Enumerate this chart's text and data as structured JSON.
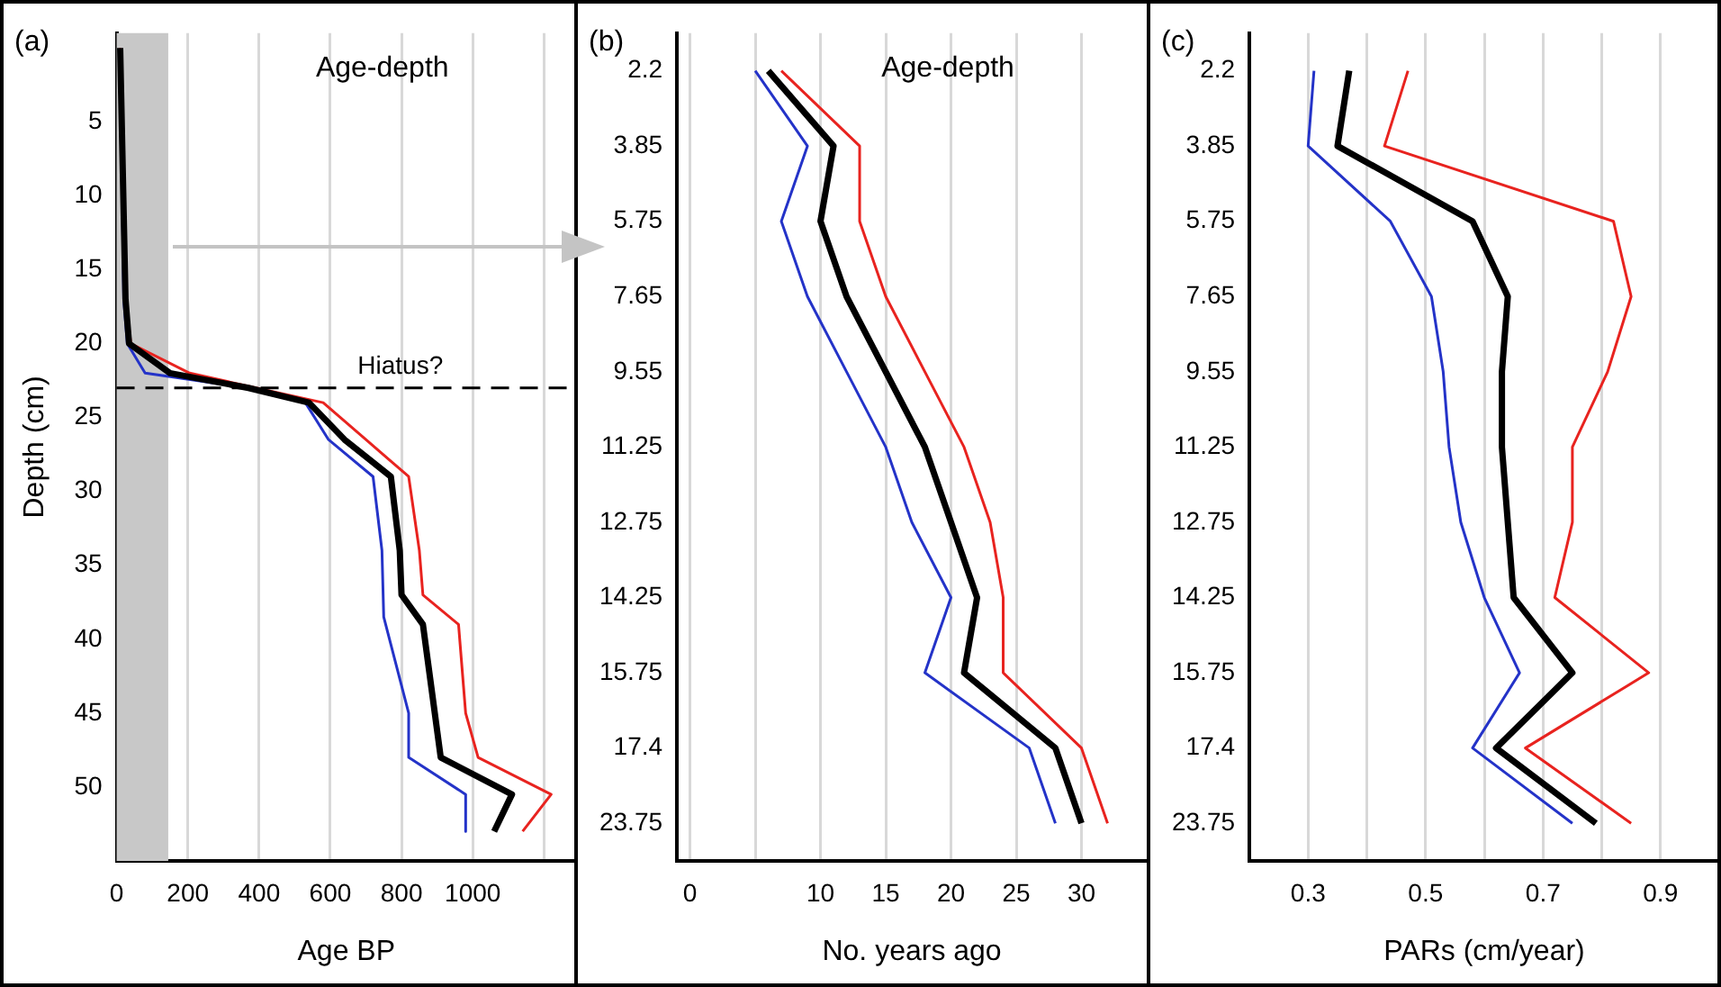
{
  "chart_data": [
    {
      "type": "line",
      "title": "Age-depth",
      "xlabel": "Age BP",
      "ylabel": "Depth (cm)",
      "annotations": [
        "(a)"
      ],
      "xlim": [
        0,
        1290
      ],
      "xticks": [
        0,
        200,
        400,
        600,
        800,
        1000,
        {
          "value": 1200,
          "label": null
        }
      ],
      "ylim": [
        55,
        -1
      ],
      "yticks": [
        5,
        10,
        15,
        20,
        25,
        30,
        35,
        40,
        45,
        50
      ],
      "series": [
        {
          "color": "#e8231f",
          "x": [
            10,
            25,
            40,
            205,
            580,
            700,
            820,
            850,
            860,
            960,
            980,
            1015,
            1220,
            1140
          ],
          "values": [
            0,
            17,
            20,
            22,
            24,
            26.5,
            29,
            34,
            37,
            39,
            45,
            48,
            50.5,
            53
          ]
        },
        {
          "color": "#2433c8",
          "x": [
            10,
            20,
            30,
            80,
            370,
            530,
            595,
            720,
            745,
            750,
            820,
            820,
            980,
            980
          ],
          "values": [
            0,
            17,
            20,
            22,
            23,
            24,
            26.5,
            29,
            34,
            38.5,
            45,
            48,
            50.5,
            53
          ]
        },
        {
          "color": "#000000",
          "x": [
            10,
            25,
            35,
            150,
            370,
            540,
            640,
            770,
            795,
            800,
            860,
            910,
            1110,
            1060
          ],
          "values": [
            0,
            17,
            20,
            22,
            23,
            24,
            26.5,
            29,
            34,
            37,
            39,
            48,
            50.5,
            53
          ]
        }
      ],
      "ref_lines": [
        {
          "axis": "y",
          "value": 23,
          "label": "Hiatus?",
          "color": "#000000",
          "line_style": "dashed"
        }
      ],
      "bands": [
        {
          "axis": "x",
          "from": 0,
          "to": 145,
          "color": "#c8c8c8"
        }
      ],
      "grid": "x",
      "legend": false
    },
    {
      "type": "line",
      "orientation": "horizontal",
      "title": "Age-depth",
      "xlabel": "No. years ago",
      "annotations": [
        "(b)"
      ],
      "categories": [
        "2.2",
        "3.85",
        "5.75",
        "7.65",
        "9.55",
        "11.25",
        "12.75",
        "14.25",
        "15.75",
        "17.4",
        "23.75"
      ],
      "xlim": [
        -1,
        35
      ],
      "xticks": [
        0,
        {
          "value": 5,
          "label": null
        },
        10,
        15,
        20,
        25,
        30
      ],
      "series": [
        {
          "color": "#e8231f",
          "values": [
            7,
            13,
            13,
            15,
            18,
            21,
            23,
            24,
            24,
            30,
            32
          ]
        },
        {
          "color": "#2433c8",
          "values": [
            5,
            9,
            7,
            9,
            12,
            15,
            17,
            20,
            18,
            26,
            28
          ]
        },
        {
          "color": "#000000",
          "values": [
            6,
            11,
            10,
            12,
            15,
            18,
            20,
            22,
            21,
            28,
            30
          ]
        }
      ],
      "grid": "x",
      "legend": false
    },
    {
      "type": "line",
      "orientation": "horizontal",
      "xlabel": "PARs (cm/year)",
      "annotations": [
        "(c)"
      ],
      "categories": [
        "2.2",
        "3.85",
        "5.75",
        "7.65",
        "9.55",
        "11.25",
        "12.75",
        "14.25",
        "15.75",
        "17.4",
        "23.75"
      ],
      "xlim": [
        0.2,
        1.0
      ],
      "xticks": [
        0.3,
        {
          "value": 0.4,
          "label": null
        },
        0.5,
        {
          "value": 0.6,
          "label": null
        },
        0.7,
        {
          "value": 0.8,
          "label": null
        },
        0.9
      ],
      "series": [
        {
          "color": "#e8231f",
          "values": [
            0.47,
            0.43,
            0.82,
            0.85,
            0.81,
            0.75,
            0.75,
            0.72,
            0.88,
            0.67,
            0.85
          ]
        },
        {
          "color": "#2433c8",
          "values": [
            0.31,
            0.3,
            0.44,
            0.51,
            0.53,
            0.54,
            0.56,
            0.6,
            0.66,
            0.58,
            0.75
          ]
        },
        {
          "color": "#000000",
          "values": [
            0.37,
            0.35,
            0.58,
            0.64,
            0.63,
            0.63,
            0.64,
            0.65,
            0.75,
            0.62,
            0.79
          ]
        }
      ],
      "grid": "x",
      "legend": false
    }
  ]
}
